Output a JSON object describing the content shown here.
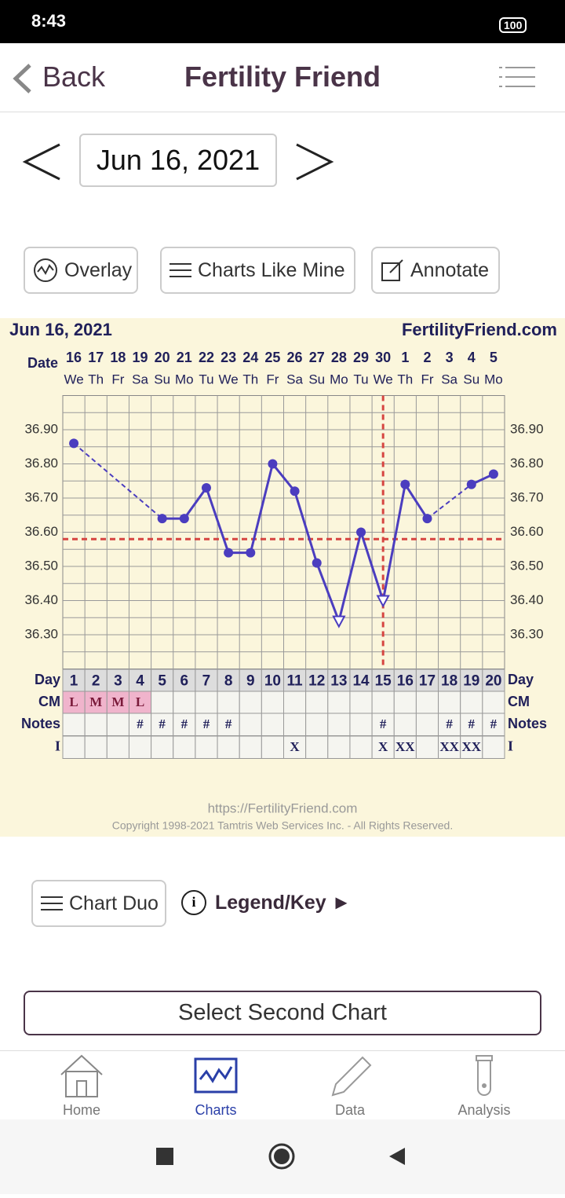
{
  "status_bar": {
    "time": "8:43",
    "battery": "100"
  },
  "header": {
    "back": "Back",
    "title": "Fertility Friend"
  },
  "date_nav": {
    "date": "Jun 16, 2021"
  },
  "toolbar": [
    "Overlay",
    "Charts Like Mine",
    "Annotate"
  ],
  "chart_data": {
    "type": "line",
    "title": "Jun 16, 2021",
    "site": "FertilityFriend.com",
    "date_label": "Date",
    "dates": [
      "16",
      "17",
      "18",
      "19",
      "20",
      "21",
      "22",
      "23",
      "24",
      "25",
      "26",
      "27",
      "28",
      "29",
      "30",
      "1",
      "2",
      "3",
      "4",
      "5"
    ],
    "weekdays": [
      "We",
      "Th",
      "Fr",
      "Sa",
      "Su",
      "Mo",
      "Tu",
      "We",
      "Th",
      "Fr",
      "Sa",
      "Su",
      "Mo",
      "Tu",
      "We",
      "Th",
      "Fr",
      "Sa",
      "Su",
      "Mo"
    ],
    "categories": [
      "1",
      "2",
      "3",
      "4",
      "5",
      "6",
      "7",
      "8",
      "9",
      "10",
      "11",
      "12",
      "13",
      "14",
      "15",
      "16",
      "17",
      "18",
      "19",
      "20"
    ],
    "series": [
      {
        "color": "#4b3dbf",
        "values": [
          36.86,
          null,
          null,
          null,
          36.64,
          36.64,
          36.73,
          36.54,
          36.54,
          36.8,
          36.72,
          36.51,
          36.34,
          36.6,
          36.4,
          36.74,
          36.64,
          null,
          36.74,
          36.77
        ]
      }
    ],
    "hollow_days": [
      13,
      15
    ],
    "ylim": [
      36.2,
      37.0
    ],
    "yticks": [
      {
        "value": 36.3,
        "label": "36.30"
      },
      {
        "value": 36.4,
        "label": "36.40"
      },
      {
        "value": 36.5,
        "label": "36.50"
      },
      {
        "value": 36.6,
        "label": "36.60"
      },
      {
        "value": 36.7,
        "label": "36.70"
      },
      {
        "value": 36.8,
        "label": "36.80"
      },
      {
        "value": 36.9,
        "label": "36.90"
      }
    ],
    "minor_yticks": [
      36.25,
      36.35,
      36.45,
      36.55,
      36.65,
      36.75,
      36.85,
      36.95
    ],
    "grid": true,
    "coverline": 36.58,
    "ovulation_day": 15,
    "reference_color": "#d64541",
    "row_labels": {
      "day": "Day",
      "cm": "CM",
      "notes": "Notes",
      "i": "I"
    },
    "cm": [
      "L",
      "M",
      "M",
      "L",
      null,
      null,
      null,
      null,
      null,
      null,
      null,
      null,
      null,
      null,
      null,
      null,
      null,
      null,
      null,
      null
    ],
    "notes": [
      null,
      null,
      null,
      "#",
      "#",
      "#",
      "#",
      "#",
      null,
      null,
      null,
      null,
      null,
      null,
      "#",
      null,
      null,
      "#",
      "#",
      "#"
    ],
    "i": [
      null,
      null,
      null,
      null,
      null,
      null,
      null,
      null,
      null,
      null,
      "X",
      null,
      null,
      null,
      "X",
      "XX",
      null,
      "XX",
      "XX",
      null
    ],
    "url": "https://FertilityFriend.com",
    "copyright": "Copyright 1998-2021 Tamtris Web Services Inc. - All Rights Reserved."
  },
  "actions": {
    "chart_duo": "Chart Duo",
    "legend": "Legend/Key ►",
    "select": "Select Second Chart"
  },
  "nav": [
    "Home",
    "Charts",
    "Data",
    "Analysis"
  ]
}
